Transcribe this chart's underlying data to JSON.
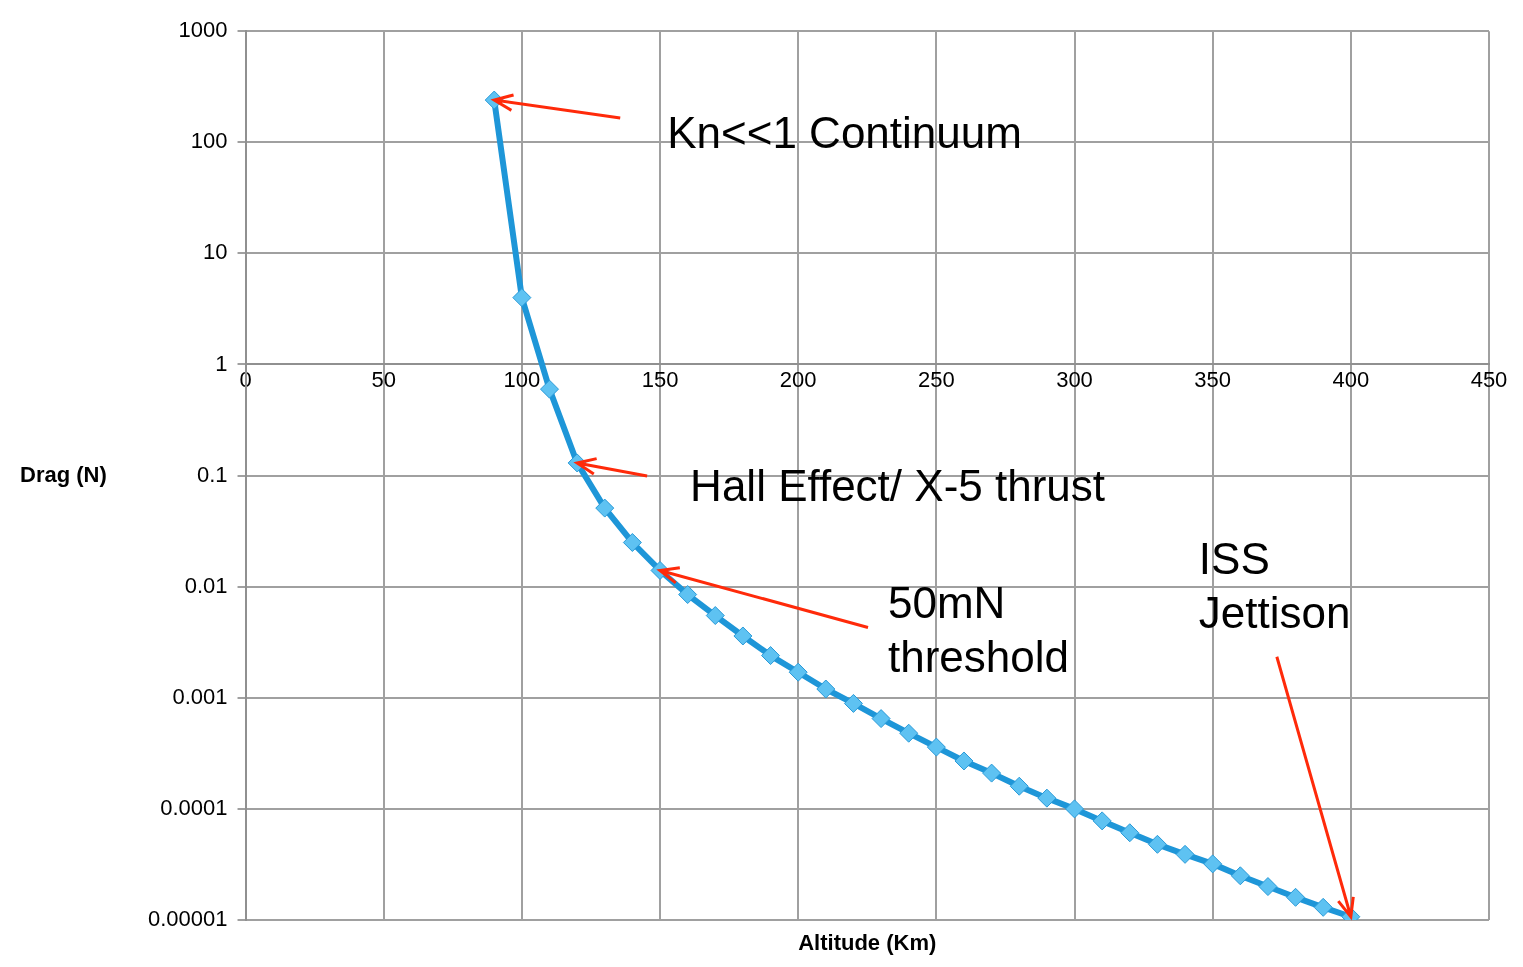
{
  "chart_data": {
    "type": "line",
    "xlabel": "Altitude (Km)",
    "ylabel": "Drag (N)",
    "x": [
      90,
      100,
      110,
      120,
      130,
      140,
      150,
      160,
      170,
      180,
      190,
      200,
      210,
      220,
      230,
      240,
      250,
      260,
      270,
      280,
      290,
      300,
      310,
      320,
      330,
      340,
      350,
      360,
      370,
      380,
      390,
      400
    ],
    "series": [
      {
        "color": "#1e96d8",
        "values": [
          240,
          4,
          0.6,
          0.13,
          0.051,
          0.025,
          0.014,
          0.0085,
          0.0055,
          0.0036,
          0.0024,
          0.0017,
          0.0012,
          0.00089,
          0.00065,
          0.00048,
          0.00036,
          0.00027,
          0.00021,
          0.00016,
          0.000125,
          0.0001,
          7.8e-05,
          6.1e-05,
          4.8e-05,
          3.9e-05,
          3.2e-05,
          2.5e-05,
          2e-05,
          1.6e-05,
          1.3e-05,
          1.07e-05
        ]
      }
    ],
    "xlim": [
      0,
      450
    ],
    "xticks": [
      0,
      50,
      100,
      150,
      200,
      250,
      300,
      350,
      400,
      450
    ],
    "ylim": [
      1e-05,
      1000
    ],
    "yticks": [
      {
        "value": 1e-05,
        "label": "0.00001"
      },
      0.0001,
      0.001,
      0.01,
      0.1,
      1,
      10,
      100,
      1000
    ],
    "log": "y",
    "grid": true,
    "marker": "diamond",
    "line_style": "solid",
    "annotations": [
      {
        "text": "Kn<<1 Continuum",
        "x": 90,
        "y": 240
      },
      {
        "text": "Hall Effect/ X-5 thrust",
        "x": 120,
        "y": 0.13
      },
      {
        "text": "50mN\nthreshold",
        "x": 150,
        "y": 0.014
      },
      {
        "text": "ISS\nJettison",
        "x": 400,
        "y": 1.07e-05
      }
    ]
  }
}
